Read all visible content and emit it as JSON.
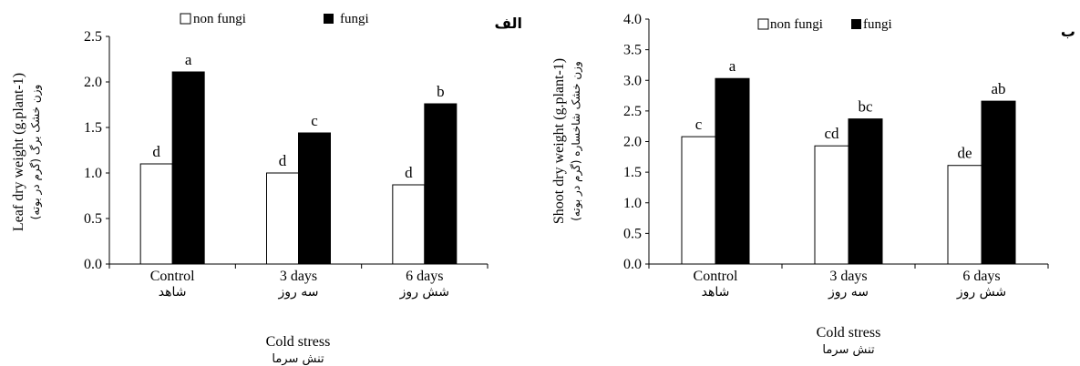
{
  "chart_data": [
    {
      "type": "bar",
      "panel_label": "الف",
      "categories": [
        "Control",
        "3 days",
        "6 days"
      ],
      "categories_fa": [
        "شاهد",
        "سه روز",
        "شش روز"
      ],
      "series": [
        {
          "name": "non fungi",
          "values": [
            1.1,
            1.0,
            0.87
          ],
          "letters": [
            "d",
            "d",
            "d"
          ],
          "color": "#ffffff"
        },
        {
          "name": "fungi",
          "values": [
            2.11,
            1.44,
            1.76
          ],
          "letters": [
            "a",
            "c",
            "b"
          ],
          "color": "#000000"
        }
      ],
      "ylabel": "Leaf dry weight (g.plant-1)",
      "ylabel_fa": "وزن خشک برگ (گرم در بوته)",
      "xlabel": "Cold stress",
      "xlabel_fa": "تنش سرما",
      "ylim": [
        0,
        2.5
      ],
      "yticks": [
        "0.0",
        "0.5",
        "1.0",
        "1.5",
        "2.0",
        "2.5"
      ],
      "legend_position": "top",
      "grid": false
    },
    {
      "type": "bar",
      "panel_label": "ب",
      "categories": [
        "Control",
        "3 days",
        "6 days"
      ],
      "categories_fa": [
        "شاهد",
        "سه روز",
        "شش روز"
      ],
      "series": [
        {
          "name": "non fungi",
          "values": [
            2.08,
            1.93,
            1.61
          ],
          "letters": [
            "c",
            "cd",
            "de"
          ],
          "color": "#ffffff"
        },
        {
          "name": "fungi",
          "values": [
            3.03,
            2.37,
            2.66
          ],
          "letters": [
            "a",
            "bc",
            "ab"
          ],
          "color": "#000000"
        }
      ],
      "ylabel": "Shoot dry weight (g.plant-1)",
      "ylabel_fa": "وزن خشک شاخساره (گرم در بوته)",
      "xlabel": "Cold stress",
      "xlabel_fa": "تنش سرما",
      "ylim": [
        0,
        4.0
      ],
      "yticks": [
        "0.0",
        "0.5",
        "1.0",
        "1.5",
        "2.0",
        "2.5",
        "3.0",
        "3.5",
        "4.0"
      ],
      "legend_position": "top",
      "grid": false
    }
  ]
}
